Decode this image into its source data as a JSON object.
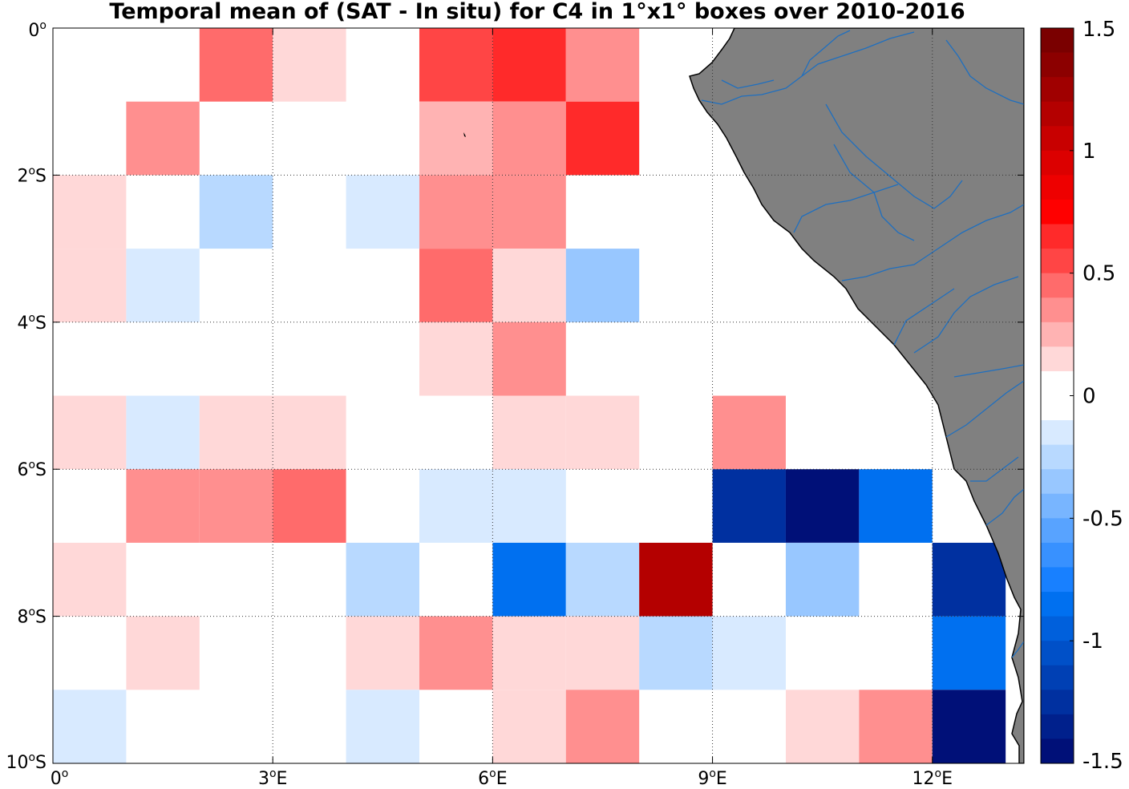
{
  "title": "Temporal mean of (SAT - In situ) for C4 in 1°x1° boxes over 2010-2016",
  "map": {
    "x_ticks": [
      {
        "value": 0,
        "label": "0",
        "sup": "o",
        "suffix": ""
      },
      {
        "value": 3,
        "label": "3",
        "sup": "o",
        "suffix": "E"
      },
      {
        "value": 6,
        "label": "6",
        "sup": "o",
        "suffix": "E"
      },
      {
        "value": 9,
        "label": "9",
        "sup": "o",
        "suffix": "E"
      },
      {
        "value": 12,
        "label": "12",
        "sup": "o",
        "suffix": "E"
      }
    ],
    "y_ticks": [
      {
        "value": 0,
        "label": "0",
        "sup": "o",
        "suffix": ""
      },
      {
        "value": -2,
        "label": "2",
        "sup": "o",
        "suffix": "S"
      },
      {
        "value": -4,
        "label": "4",
        "sup": "o",
        "suffix": "S"
      },
      {
        "value": -6,
        "label": "6",
        "sup": "o",
        "suffix": "S"
      },
      {
        "value": -8,
        "label": "8",
        "sup": "o",
        "suffix": "S"
      },
      {
        "value": -10,
        "label": "10",
        "sup": "o",
        "suffix": "S"
      }
    ],
    "lon_range": [
      0,
      13.25
    ],
    "lat_range": [
      -10,
      0
    ],
    "land_color": "#808080",
    "river_color": "#1f6fbf",
    "coast_color": "#000000",
    "cells": [
      {
        "lon": 2,
        "lat": 0,
        "value": 0.45
      },
      {
        "lon": 3,
        "lat": 0,
        "value": 0.1
      },
      {
        "lon": 5,
        "lat": 0,
        "value": 0.55
      },
      {
        "lon": 6,
        "lat": 0,
        "value": 0.65
      },
      {
        "lon": 7,
        "lat": 0,
        "value": 0.3
      },
      {
        "lon": 1,
        "lat": -1,
        "value": 0.3
      },
      {
        "lon": 5,
        "lat": -1,
        "value": 0.25
      },
      {
        "lon": 6,
        "lat": -1,
        "value": 0.3
      },
      {
        "lon": 7,
        "lat": -1,
        "value": 0.65
      },
      {
        "lon": 0,
        "lat": -2,
        "value": 0.15
      },
      {
        "lon": 2,
        "lat": -2,
        "value": -0.25
      },
      {
        "lon": 4,
        "lat": -2,
        "value": -0.15
      },
      {
        "lon": 5,
        "lat": -2,
        "value": 0.35
      },
      {
        "lon": 6,
        "lat": -2,
        "value": 0.4
      },
      {
        "lon": 0,
        "lat": -3,
        "value": 0.15
      },
      {
        "lon": 1,
        "lat": -3,
        "value": -0.15
      },
      {
        "lon": 5,
        "lat": -3,
        "value": 0.5
      },
      {
        "lon": 6,
        "lat": -3,
        "value": 0.15
      },
      {
        "lon": 7,
        "lat": -3,
        "value": -0.35
      },
      {
        "lon": 5,
        "lat": -4,
        "value": 0.15
      },
      {
        "lon": 6,
        "lat": -4,
        "value": 0.3
      },
      {
        "lon": 0,
        "lat": -5,
        "value": 0.15
      },
      {
        "lon": 1,
        "lat": -5,
        "value": -0.15
      },
      {
        "lon": 2,
        "lat": -5,
        "value": 0.15
      },
      {
        "lon": 3,
        "lat": -5,
        "value": 0.15
      },
      {
        "lon": 6,
        "lat": -5,
        "value": 0.15
      },
      {
        "lon": 7,
        "lat": -5,
        "value": 0.15
      },
      {
        "lon": 9,
        "lat": -5,
        "value": 0.4
      },
      {
        "lon": 1,
        "lat": -6,
        "value": 0.4
      },
      {
        "lon": 2,
        "lat": -6,
        "value": 0.3
      },
      {
        "lon": 3,
        "lat": -6,
        "value": 0.5
      },
      {
        "lon": 5,
        "lat": -6,
        "value": -0.15
      },
      {
        "lon": 6,
        "lat": -6,
        "value": -0.15
      },
      {
        "lon": 9,
        "lat": -6,
        "value": -1.3
      },
      {
        "lon": 10,
        "lat": -6,
        "value": -1.5
      },
      {
        "lon": 11,
        "lat": -6,
        "value": -0.9
      },
      {
        "lon": 0,
        "lat": -7,
        "value": 0.15
      },
      {
        "lon": 4,
        "lat": -7,
        "value": -0.25
      },
      {
        "lon": 6,
        "lat": -7,
        "value": -0.8
      },
      {
        "lon": 7,
        "lat": -7,
        "value": -0.25
      },
      {
        "lon": 8,
        "lat": -7,
        "value": 1.1
      },
      {
        "lon": 10,
        "lat": -7,
        "value": -0.35
      },
      {
        "lon": 12,
        "lat": -7,
        "value": -1.3
      },
      {
        "lon": 1,
        "lat": -8,
        "value": 0.15
      },
      {
        "lon": 4,
        "lat": -8,
        "value": 0.15
      },
      {
        "lon": 5,
        "lat": -8,
        "value": 0.3
      },
      {
        "lon": 6,
        "lat": -8,
        "value": 0.15
      },
      {
        "lon": 7,
        "lat": -8,
        "value": 0.15
      },
      {
        "lon": 8,
        "lat": -8,
        "value": -0.25
      },
      {
        "lon": 9,
        "lat": -8,
        "value": -0.15
      },
      {
        "lon": 12,
        "lat": -8,
        "value": -0.8
      },
      {
        "lon": 0,
        "lat": -9,
        "value": -0.15
      },
      {
        "lon": 4,
        "lat": -9,
        "value": -0.15
      },
      {
        "lon": 6,
        "lat": -9,
        "value": 0.15
      },
      {
        "lon": 7,
        "lat": -9,
        "value": 0.3
      },
      {
        "lon": 10,
        "lat": -9,
        "value": 0.15
      },
      {
        "lon": 11,
        "lat": -9,
        "value": 0.3
      },
      {
        "lon": 12,
        "lat": -9,
        "value": -1.5
      }
    ]
  },
  "colorbar": {
    "min": -1.5,
    "max": 1.5,
    "ticks": [
      {
        "value": 1.5,
        "label": "1.5"
      },
      {
        "value": 1,
        "label": "1"
      },
      {
        "value": 0.5,
        "label": "0.5"
      },
      {
        "value": 0,
        "label": "0"
      },
      {
        "value": -0.5,
        "label": "-0.5"
      },
      {
        "value": -1,
        "label": "-1"
      },
      {
        "value": -1.5,
        "label": "-1.5"
      }
    ],
    "colors_top_to_bottom": [
      "#7a0000",
      "#8c0000",
      "#a00000",
      "#b40000",
      "#c80000",
      "#dc0000",
      "#ee0000",
      "#ff0000",
      "#ff2a2a",
      "#ff4545",
      "#ff6b6b",
      "#ff8f8f",
      "#ffb3b3",
      "#ffd8d8",
      "#ffffff",
      "#ffffff",
      "#d8eaff",
      "#b8d9ff",
      "#98c7ff",
      "#78b5ff",
      "#58a3ff",
      "#3891ff",
      "#1880ff",
      "#0070f0",
      "#0060dc",
      "#0050c8",
      "#0040b4",
      "#0030a0",
      "#00208c",
      "#001078"
    ]
  }
}
